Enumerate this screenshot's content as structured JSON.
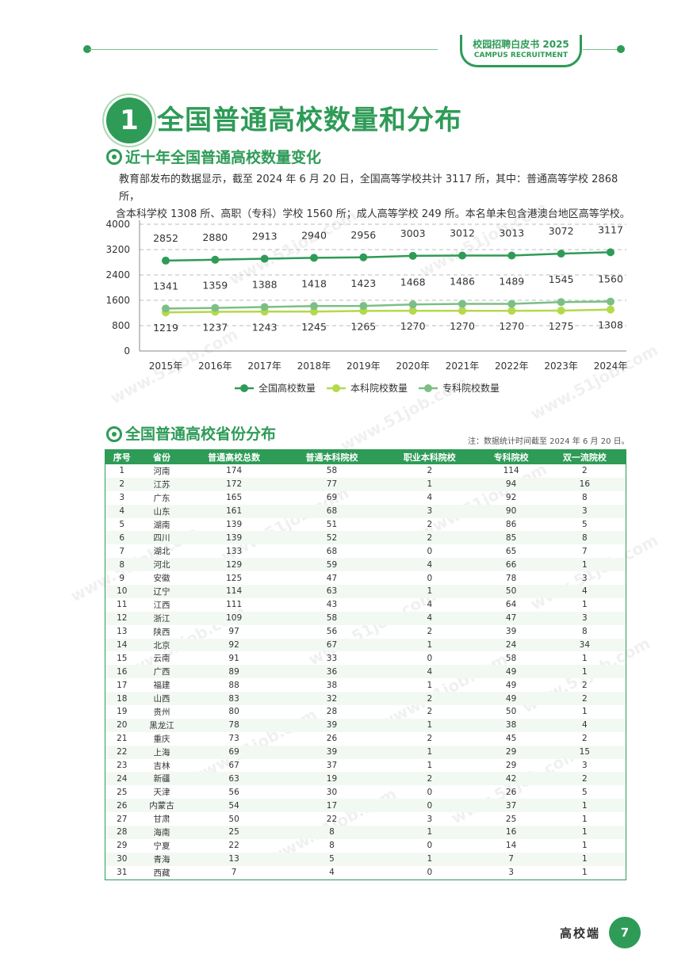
{
  "header": {
    "badge_cn": "校园招聘白皮书 2025",
    "badge_en": "CAMPUS RECRUITMENT"
  },
  "section_number": "1",
  "main_title": "全国普通高校数量和分布",
  "section1_title": "近十年全国普通高校数量变化",
  "paragraph_line1": "教育部发布的数据显示，截至 2024 年 6 月 20 日，全国高等学校共计 3117 所，其中：普通高等学校 2868 所，",
  "paragraph_line2": "含本科学校 1308 所、高职（专科）学校 1560 所；成人高等学校 249 所。本名单未包含港澳台地区高等学校。",
  "chart_data": {
    "type": "line",
    "categories": [
      "2015年",
      "2016年",
      "2017年",
      "2018年",
      "2019年",
      "2020年",
      "2021年",
      "2022年",
      "2023年",
      "2024年"
    ],
    "ylim": [
      0,
      4000
    ],
    "yticks": [
      "0",
      "800",
      "1600",
      "2400",
      "3200",
      "4000"
    ],
    "legend_position": "bottom",
    "series": [
      {
        "name": "全国高校数量",
        "color": "#2e9b57",
        "values": [
          2852,
          2880,
          2913,
          2940,
          2956,
          3003,
          3012,
          3013,
          3072,
          3117
        ]
      },
      {
        "name": "本科院校数量",
        "color": "#b4d94a",
        "values": [
          1219,
          1237,
          1243,
          1245,
          1265,
          1270,
          1270,
          1270,
          1275,
          1308
        ]
      },
      {
        "name": "专科院校数量",
        "color": "#7cbf86",
        "values": [
          1341,
          1359,
          1388,
          1418,
          1423,
          1468,
          1486,
          1489,
          1545,
          1560
        ]
      }
    ]
  },
  "section2_title": "全国普通高校省份分布",
  "note": "注：数据统计时间截至 2024 年 6 月 20 日。",
  "table": {
    "headers": [
      "序号",
      "省份",
      "普通高校总数",
      "普通本科院校",
      "职业本科院校",
      "专科院校",
      "双一流院校"
    ],
    "rows": [
      [
        "1",
        "河南",
        "174",
        "58",
        "2",
        "114",
        "2"
      ],
      [
        "2",
        "江苏",
        "172",
        "77",
        "1",
        "94",
        "16"
      ],
      [
        "3",
        "广东",
        "165",
        "69",
        "4",
        "92",
        "8"
      ],
      [
        "4",
        "山东",
        "161",
        "68",
        "3",
        "90",
        "3"
      ],
      [
        "5",
        "湖南",
        "139",
        "51",
        "2",
        "86",
        "5"
      ],
      [
        "6",
        "四川",
        "139",
        "52",
        "2",
        "85",
        "8"
      ],
      [
        "7",
        "湖北",
        "133",
        "68",
        "0",
        "65",
        "7"
      ],
      [
        "8",
        "河北",
        "129",
        "59",
        "4",
        "66",
        "1"
      ],
      [
        "9",
        "安徽",
        "125",
        "47",
        "0",
        "78",
        "3"
      ],
      [
        "10",
        "辽宁",
        "114",
        "63",
        "1",
        "50",
        "4"
      ],
      [
        "11",
        "江西",
        "111",
        "43",
        "4",
        "64",
        "1"
      ],
      [
        "12",
        "浙江",
        "109",
        "58",
        "4",
        "47",
        "3"
      ],
      [
        "13",
        "陕西",
        "97",
        "56",
        "2",
        "39",
        "8"
      ],
      [
        "14",
        "北京",
        "92",
        "67",
        "1",
        "24",
        "34"
      ],
      [
        "15",
        "云南",
        "91",
        "33",
        "0",
        "58",
        "1"
      ],
      [
        "16",
        "广西",
        "89",
        "36",
        "4",
        "49",
        "1"
      ],
      [
        "17",
        "福建",
        "88",
        "38",
        "1",
        "49",
        "2"
      ],
      [
        "18",
        "山西",
        "83",
        "32",
        "2",
        "49",
        "2"
      ],
      [
        "19",
        "贵州",
        "80",
        "28",
        "2",
        "50",
        "1"
      ],
      [
        "20",
        "黑龙江",
        "78",
        "39",
        "1",
        "38",
        "4"
      ],
      [
        "21",
        "重庆",
        "73",
        "26",
        "2",
        "45",
        "2"
      ],
      [
        "22",
        "上海",
        "69",
        "39",
        "1",
        "29",
        "15"
      ],
      [
        "23",
        "吉林",
        "67",
        "37",
        "1",
        "29",
        "3"
      ],
      [
        "24",
        "新疆",
        "63",
        "19",
        "2",
        "42",
        "2"
      ],
      [
        "25",
        "天津",
        "56",
        "30",
        "0",
        "26",
        "5"
      ],
      [
        "26",
        "内蒙古",
        "54",
        "17",
        "0",
        "37",
        "1"
      ],
      [
        "27",
        "甘肃",
        "50",
        "22",
        "3",
        "25",
        "1"
      ],
      [
        "28",
        "海南",
        "25",
        "8",
        "1",
        "16",
        "1"
      ],
      [
        "29",
        "宁夏",
        "22",
        "8",
        "0",
        "14",
        "1"
      ],
      [
        "30",
        "青海",
        "13",
        "5",
        "1",
        "7",
        "1"
      ],
      [
        "31",
        "西藏",
        "7",
        "4",
        "0",
        "3",
        "1"
      ]
    ]
  },
  "watermark": "www.51job.com",
  "footer": {
    "label": "高校端",
    "page": "7"
  }
}
